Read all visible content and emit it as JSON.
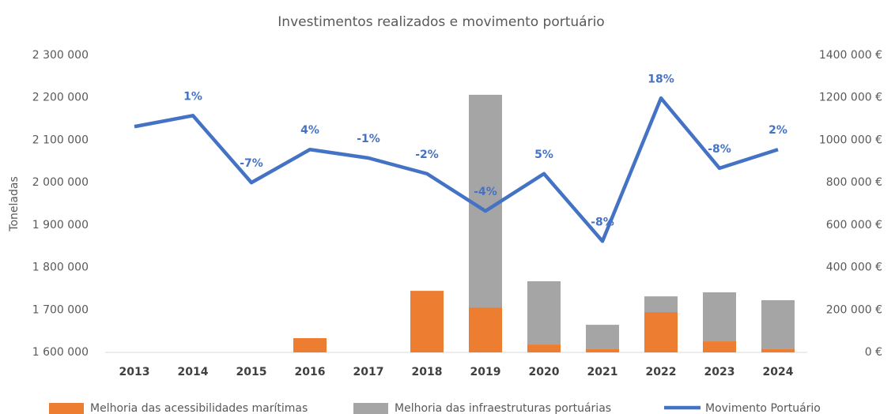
{
  "chart_data": {
    "type": "combo",
    "title": "Investimentos realizados e movimento portuário",
    "ylabel": "Toneladas",
    "categories": [
      "2013",
      "2014",
      "2015",
      "2016",
      "2017",
      "2018",
      "2019",
      "2020",
      "2021",
      "2022",
      "2023",
      "2024"
    ],
    "series": [
      {
        "name": "Melhoria das acessibilidades marítimas",
        "type": "bar",
        "axis": "y2",
        "color": "#ed7d31",
        "values": [
          0,
          0,
          0,
          67000,
          0,
          290000,
          212000,
          37000,
          15000,
          190000,
          52000,
          15000
        ]
      },
      {
        "name": "Melhoria das infraestruturas portuárias",
        "type": "bar",
        "axis": "y2",
        "color": "#a5a5a5",
        "values": [
          0,
          0,
          0,
          0,
          0,
          0,
          1002000,
          298000,
          115000,
          74000,
          231000,
          231000
        ]
      },
      {
        "name": "Movimento Portuário",
        "type": "line",
        "axis": "y",
        "color": "#4472c4",
        "values": [
          2132000,
          2158000,
          2000000,
          2078000,
          2058000,
          2021000,
          1933000,
          2021000,
          1862000,
          2199000,
          2034000,
          2078000
        ]
      }
    ],
    "change_labels": [
      null,
      "1%",
      "-7%",
      "4%",
      "-1%",
      "-2%",
      "-4%",
      "5%",
      "-8%",
      "18%",
      "-8%",
      "2%"
    ],
    "stacked": true,
    "ylim": [
      1600000,
      2300000
    ],
    "yticks": [
      {
        "value": 1600000,
        "label": "1 600 000"
      },
      {
        "value": 1700000,
        "label": "1 700 000"
      },
      {
        "value": 1800000,
        "label": "1 800 000"
      },
      {
        "value": 1900000,
        "label": "1 900 000"
      },
      {
        "value": 2000000,
        "label": "2 000 000"
      },
      {
        "value": 2100000,
        "label": "2 100 000"
      },
      {
        "value": 2200000,
        "label": "2 200 000"
      },
      {
        "value": 2300000,
        "label": "2 300 000"
      }
    ],
    "y2lim": [
      0,
      1400000
    ],
    "y2ticks": [
      {
        "value": 0,
        "label": "0 €"
      },
      {
        "value": 200000,
        "label": "200 000 €"
      },
      {
        "value": 400000,
        "label": "400 000 €"
      },
      {
        "value": 600000,
        "label": "600 000 €"
      },
      {
        "value": 800000,
        "label": "800 000 €"
      },
      {
        "value": 1000000,
        "label": "1000 000 €"
      },
      {
        "value": 1200000,
        "label": "1200 000 €"
      },
      {
        "value": 1400000,
        "label": "1400 000 €"
      }
    ],
    "grid": false,
    "legend": "bottom"
  }
}
